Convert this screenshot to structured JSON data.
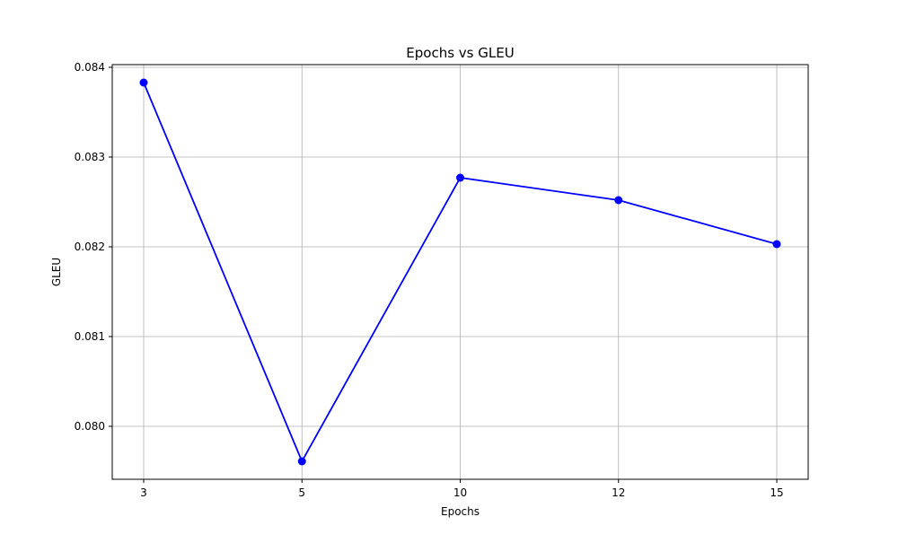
{
  "chart_data": {
    "type": "line",
    "title": "Epochs vs GLEU",
    "xlabel": "Epochs",
    "ylabel": "GLEU",
    "categories": [
      "3",
      "5",
      "10",
      "12",
      "15"
    ],
    "series": [
      {
        "values": [
          0.08383,
          0.07961,
          0.08277,
          0.08252,
          0.08203
        ]
      }
    ],
    "y_ticks": [
      0.08,
      0.081,
      0.082,
      0.083,
      0.084
    ],
    "y_tick_labels": [
      "0.080",
      "0.081",
      "0.082",
      "0.083",
      "0.084"
    ],
    "ylim": [
      0.07941,
      0.08403
    ],
    "grid": true,
    "line_color": "#0000ff",
    "marker": "circle"
  }
}
